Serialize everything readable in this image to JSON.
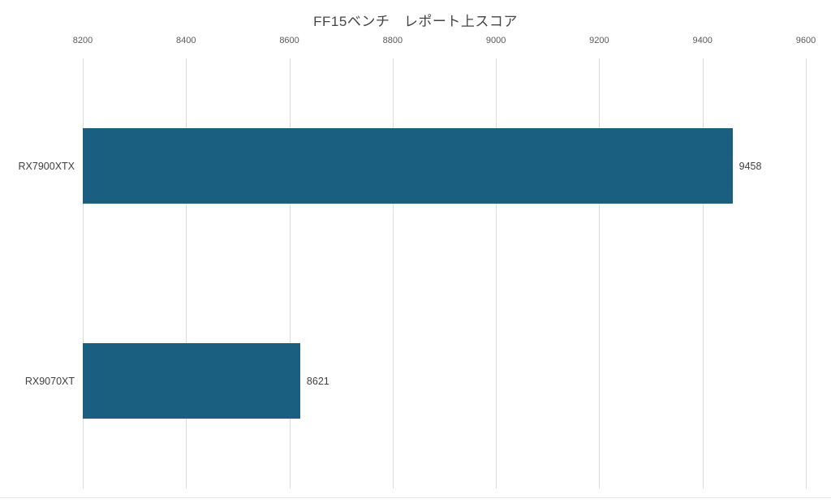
{
  "title": "FF15ベンチ　レポート上スコア",
  "colors": {
    "bar": "#1b5f80",
    "gridline": "#dcdcdc",
    "tick_label": "#595959",
    "category_label": "#404040",
    "value_label": "#404040",
    "title": "#444444",
    "background": "#ffffff",
    "bottom_line": "#e4e4e4"
  },
  "chart_data": {
    "type": "bar",
    "orientation": "horizontal",
    "title": "FF15ベンチ　レポート上スコア",
    "categories": [
      "RX7900XTX",
      "RX9070XT"
    ],
    "values": [
      9458,
      8621
    ],
    "value_labels": [
      "9458",
      "8621"
    ],
    "xlabel": "",
    "ylabel": "",
    "xlim": [
      8200,
      9600
    ],
    "xticks": [
      8200,
      8400,
      8600,
      8800,
      9000,
      9200,
      9400,
      9600
    ],
    "xtick_labels": [
      "8200",
      "8400",
      "8600",
      "8800",
      "9000",
      "9200",
      "9400",
      "9600"
    ],
    "axis_position": "top",
    "grid": true,
    "legend": false,
    "bar_height_fraction": 0.35
  }
}
